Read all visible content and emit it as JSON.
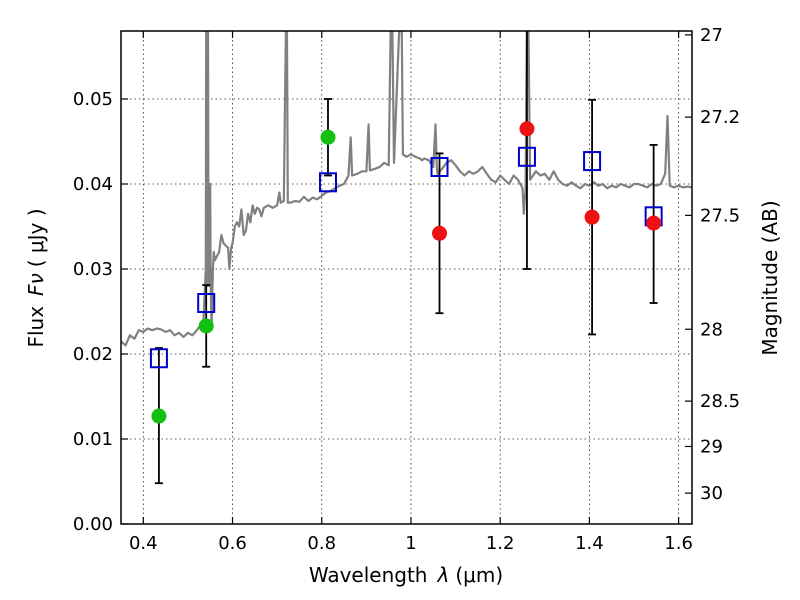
{
  "chart_data": {
    "type": "scatter",
    "xlabel": "Wavelength",
    "xlabel_symbol": "λ",
    "xlabel_unit": "(μm)",
    "ylabel": "Flux",
    "ylabel_symbol": "Fν",
    "ylabel_unit": "( μJy )",
    "y2label": "Magnitude (AB)",
    "xlim": [
      0.35,
      1.63
    ],
    "ylim": [
      0.0,
      0.058
    ],
    "grid": true,
    "x_ticks": [
      {
        "value": 0.4,
        "label": "0.4"
      },
      {
        "value": 0.6,
        "label": "0.6"
      },
      {
        "value": 0.8,
        "label": "0.8"
      },
      {
        "value": 1.0,
        "label": "1"
      },
      {
        "value": 1.2,
        "label": "1.2"
      },
      {
        "value": 1.4,
        "label": "1.4"
      },
      {
        "value": 1.6,
        "label": "1.6"
      }
    ],
    "y_ticks": [
      {
        "value": 0.0,
        "label": "0.00"
      },
      {
        "value": 0.01,
        "label": "0.01"
      },
      {
        "value": 0.02,
        "label": "0.02"
      },
      {
        "value": 0.03,
        "label": "0.03"
      },
      {
        "value": 0.04,
        "label": "0.04"
      },
      {
        "value": 0.05,
        "label": "0.05"
      }
    ],
    "y2_ticks": [
      {
        "value": 27.0,
        "label": "27"
      },
      {
        "value": 27.2,
        "label": "27.2"
      },
      {
        "value": 27.5,
        "label": "27.5"
      },
      {
        "value": 28.0,
        "label": "28"
      },
      {
        "value": 28.5,
        "label": "28.5"
      },
      {
        "value": 29.0,
        "label": "29"
      },
      {
        "value": 30.0,
        "label": "30"
      }
    ],
    "series": [
      {
        "marker": "open-square",
        "color": "#0000cc",
        "points": [
          {
            "x": 0.435,
            "y": 0.0195
          },
          {
            "x": 0.541,
            "y": 0.026
          },
          {
            "x": 0.814,
            "y": 0.0402
          },
          {
            "x": 1.064,
            "y": 0.042
          },
          {
            "x": 1.26,
            "y": 0.0432
          },
          {
            "x": 1.406,
            "y": 0.0427
          },
          {
            "x": 1.544,
            "y": 0.0362
          }
        ]
      },
      {
        "marker": "filled-circle",
        "color": "#12c012",
        "points": [
          {
            "x": 0.435,
            "y": 0.0127,
            "ylow": 0.0048,
            "yhigh": 0.0207
          },
          {
            "x": 0.541,
            "y": 0.0233,
            "ylow": 0.0185,
            "yhigh": 0.0281
          },
          {
            "x": 0.814,
            "y": 0.0455,
            "ylow": 0.041,
            "yhigh": 0.05
          }
        ]
      },
      {
        "marker": "filled-circle",
        "color": "#ee1111",
        "points": [
          {
            "x": 1.064,
            "y": 0.0342,
            "ylow": 0.0248,
            "yhigh": 0.0436
          },
          {
            "x": 1.26,
            "y": 0.0465,
            "ylow": 0.03,
            "yhigh": 0.063
          },
          {
            "x": 1.406,
            "y": 0.0361,
            "ylow": 0.0223,
            "yhigh": 0.0499
          },
          {
            "x": 1.544,
            "y": 0.0354,
            "ylow": 0.026,
            "yhigh": 0.0446
          }
        ]
      }
    ],
    "spectrum": {
      "color": "#808080",
      "points": [
        [
          0.35,
          0.0215
        ],
        [
          0.36,
          0.021
        ],
        [
          0.37,
          0.0222
        ],
        [
          0.38,
          0.0218
        ],
        [
          0.39,
          0.0228
        ],
        [
          0.4,
          0.0226
        ],
        [
          0.41,
          0.023
        ],
        [
          0.42,
          0.0228
        ],
        [
          0.43,
          0.023
        ],
        [
          0.44,
          0.0229
        ],
        [
          0.45,
          0.0226
        ],
        [
          0.46,
          0.0228
        ],
        [
          0.47,
          0.0222
        ],
        [
          0.48,
          0.0225
        ],
        [
          0.49,
          0.022
        ],
        [
          0.5,
          0.0225
        ],
        [
          0.51,
          0.0222
        ],
        [
          0.52,
          0.0228
        ],
        [
          0.53,
          0.0235
        ],
        [
          0.535,
          0.024
        ],
        [
          0.54,
          0.03
        ],
        [
          0.541,
          0.06
        ],
        [
          0.542,
          0.03
        ],
        [
          0.543,
          0.028
        ],
        [
          0.544,
          0.033
        ],
        [
          0.545,
          0.06
        ],
        [
          0.546,
          0.035
        ],
        [
          0.548,
          0.028
        ],
        [
          0.55,
          0.04
        ],
        [
          0.551,
          0.028
        ],
        [
          0.553,
          0.023
        ],
        [
          0.556,
          0.03
        ],
        [
          0.558,
          0.032
        ],
        [
          0.56,
          0.031
        ],
        [
          0.57,
          0.032
        ],
        [
          0.575,
          0.034
        ],
        [
          0.58,
          0.033
        ],
        [
          0.59,
          0.0325
        ],
        [
          0.593,
          0.03
        ],
        [
          0.597,
          0.0325
        ],
        [
          0.6,
          0.033
        ],
        [
          0.605,
          0.035
        ],
        [
          0.61,
          0.0355
        ],
        [
          0.615,
          0.035
        ],
        [
          0.62,
          0.037
        ],
        [
          0.625,
          0.034
        ],
        [
          0.63,
          0.0345
        ],
        [
          0.635,
          0.0365
        ],
        [
          0.64,
          0.0355
        ],
        [
          0.645,
          0.0375
        ],
        [
          0.65,
          0.0365
        ],
        [
          0.655,
          0.0372
        ],
        [
          0.66,
          0.037
        ],
        [
          0.665,
          0.0362
        ],
        [
          0.67,
          0.0372
        ],
        [
          0.68,
          0.0375
        ],
        [
          0.69,
          0.0372
        ],
        [
          0.7,
          0.0375
        ],
        [
          0.705,
          0.039
        ],
        [
          0.708,
          0.0378
        ],
        [
          0.715,
          0.038
        ],
        [
          0.72,
          0.06
        ],
        [
          0.722,
          0.06
        ],
        [
          0.724,
          0.0378
        ],
        [
          0.73,
          0.0378
        ],
        [
          0.74,
          0.038
        ],
        [
          0.75,
          0.0379
        ],
        [
          0.76,
          0.0385
        ],
        [
          0.77,
          0.038
        ],
        [
          0.78,
          0.0384
        ],
        [
          0.79,
          0.0382
        ],
        [
          0.8,
          0.0386
        ],
        [
          0.81,
          0.039
        ],
        [
          0.82,
          0.0392
        ],
        [
          0.83,
          0.0395
        ],
        [
          0.84,
          0.0398
        ],
        [
          0.85,
          0.04
        ],
        [
          0.86,
          0.041
        ],
        [
          0.865,
          0.0455
        ],
        [
          0.868,
          0.041
        ],
        [
          0.88,
          0.0412
        ],
        [
          0.89,
          0.0415
        ],
        [
          0.9,
          0.0415
        ],
        [
          0.905,
          0.047
        ],
        [
          0.908,
          0.0416
        ],
        [
          0.92,
          0.0418
        ],
        [
          0.93,
          0.042
        ],
        [
          0.94,
          0.0425
        ],
        [
          0.95,
          0.0422
        ],
        [
          0.955,
          0.06
        ],
        [
          0.958,
          0.06
        ],
        [
          0.962,
          0.0425
        ],
        [
          0.975,
          0.06
        ],
        [
          0.979,
          0.06
        ],
        [
          0.982,
          0.0435
        ],
        [
          0.99,
          0.0432
        ],
        [
          1.0,
          0.0435
        ],
        [
          1.01,
          0.0432
        ],
        [
          1.02,
          0.043
        ],
        [
          1.025,
          0.0428
        ],
        [
          1.03,
          0.043
        ],
        [
          1.04,
          0.0428
        ],
        [
          1.05,
          0.042
        ],
        [
          1.055,
          0.047
        ],
        [
          1.058,
          0.042
        ],
        [
          1.06,
          0.0412
        ],
        [
          1.07,
          0.0418
        ],
        [
          1.08,
          0.0425
        ],
        [
          1.09,
          0.0428
        ],
        [
          1.1,
          0.0422
        ],
        [
          1.11,
          0.0415
        ],
        [
          1.12,
          0.041
        ],
        [
          1.13,
          0.0415
        ],
        [
          1.14,
          0.0412
        ],
        [
          1.15,
          0.0415
        ],
        [
          1.16,
          0.042
        ],
        [
          1.17,
          0.0412
        ],
        [
          1.18,
          0.0405
        ],
        [
          1.19,
          0.0402
        ],
        [
          1.2,
          0.041
        ],
        [
          1.21,
          0.0405
        ],
        [
          1.22,
          0.04
        ],
        [
          1.23,
          0.041
        ],
        [
          1.24,
          0.0405
        ],
        [
          1.245,
          0.04
        ],
        [
          1.25,
          0.0395
        ],
        [
          1.253,
          0.0365
        ],
        [
          1.257,
          0.0395
        ],
        [
          1.26,
          0.06
        ],
        [
          1.263,
          0.06
        ],
        [
          1.267,
          0.0405
        ],
        [
          1.28,
          0.0415
        ],
        [
          1.29,
          0.041
        ],
        [
          1.3,
          0.0412
        ],
        [
          1.31,
          0.0405
        ],
        [
          1.32,
          0.0415
        ],
        [
          1.33,
          0.0405
        ],
        [
          1.34,
          0.04
        ],
        [
          1.35,
          0.0398
        ],
        [
          1.36,
          0.0402
        ],
        [
          1.37,
          0.0398
        ],
        [
          1.38,
          0.0395
        ],
        [
          1.39,
          0.04
        ],
        [
          1.4,
          0.0398
        ],
        [
          1.41,
          0.0402
        ],
        [
          1.42,
          0.0398
        ],
        [
          1.43,
          0.04
        ],
        [
          1.44,
          0.0395
        ],
        [
          1.45,
          0.0398
        ],
        [
          1.46,
          0.0396
        ],
        [
          1.47,
          0.04
        ],
        [
          1.48,
          0.0398
        ],
        [
          1.49,
          0.0396
        ],
        [
          1.5,
          0.04
        ],
        [
          1.51,
          0.04
        ],
        [
          1.52,
          0.0398
        ],
        [
          1.53,
          0.0396
        ],
        [
          1.54,
          0.04
        ],
        [
          1.55,
          0.0398
        ],
        [
          1.56,
          0.04
        ],
        [
          1.57,
          0.0412
        ],
        [
          1.575,
          0.048
        ],
        [
          1.58,
          0.0398
        ],
        [
          1.59,
          0.0396
        ],
        [
          1.6,
          0.0398
        ],
        [
          1.61,
          0.0396
        ],
        [
          1.62,
          0.0397
        ],
        [
          1.63,
          0.0396
        ]
      ]
    }
  }
}
